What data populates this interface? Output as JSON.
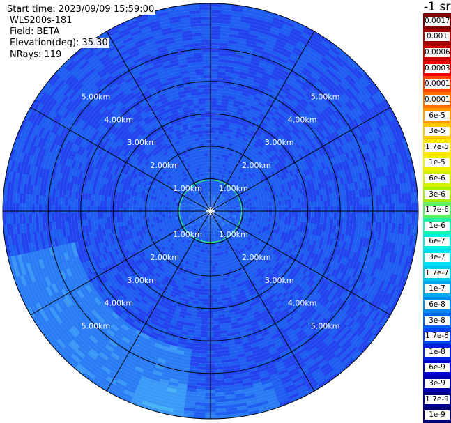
{
  "header": {
    "start_time": "Start time: 2023/09/09 15:59:00",
    "instrument": "WLS200s-181",
    "field": "Field: BETA",
    "elevation": "Elevation(deg): 35.30",
    "nrays": "NRays: 119"
  },
  "colorbar": {
    "title": "-1 sr",
    "labels": [
      "0.0017",
      "0.001",
      "0.0006",
      "0.0003",
      "0.00017",
      "0.0001",
      "6e-5",
      "3e-5",
      "1.7e-5",
      "1e-5",
      "6e-6",
      "3e-6",
      "1.7e-6",
      "1e-6",
      "6e-7",
      "3e-7",
      "1.7e-7",
      "1e-7",
      "6e-8",
      "3e-8",
      "1.7e-8",
      "1e-8",
      "6e-9",
      "3e-9",
      "1.7e-9",
      "1e-9"
    ],
    "colors": [
      "#7a0000",
      "#a00000",
      "#c80000",
      "#f00000",
      "#ff4000",
      "#ff7000",
      "#ff9a00",
      "#ffc800",
      "#ffe600",
      "#f0f000",
      "#d6f000",
      "#a8f000",
      "#60f060",
      "#20f0b0",
      "#00f0e0",
      "#00e0f0",
      "#00c8f0",
      "#00a8f0",
      "#0088f0",
      "#0066f0",
      "#0044f0",
      "#0022e0",
      "#0000d0",
      "#0000b0",
      "#000090",
      "#000070"
    ]
  },
  "chart_data": {
    "type": "heatmap",
    "title": "",
    "field": "BETA",
    "units": "-1 sr",
    "scale": "log",
    "projection": "polar",
    "nrays": 119,
    "elevation_deg": 35.3,
    "range_rings_km": [
      1,
      2,
      3,
      4,
      5
    ],
    "ring_labels": [
      "1.00km",
      "2.00km",
      "3.00km",
      "4.00km",
      "5.00km"
    ],
    "max_range_km": 6.4,
    "radial_sectors_deg": [
      0,
      30,
      60,
      90,
      120,
      150,
      180,
      210,
      240,
      270,
      300,
      330
    ],
    "dominant_values": [
      "1.7e-8",
      "1e-8",
      "1e-7"
    ]
  }
}
